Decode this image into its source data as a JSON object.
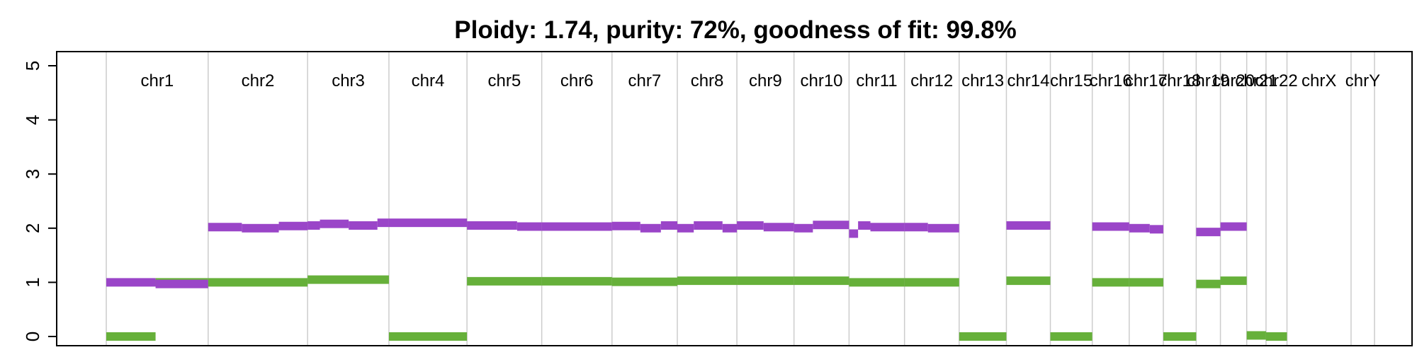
{
  "chart_data": {
    "type": "scatter",
    "title": "Ploidy: 1.74, purity: 72%, goodness of fit: 99.8%",
    "xlabel": "",
    "ylabel": "",
    "ylim": [
      0,
      5
    ],
    "y_ticks": [
      "0",
      "1",
      "2",
      "3",
      "4",
      "5"
    ],
    "grid": true,
    "legend": "none",
    "colors": {
      "major": "#9a45c8",
      "minor": "#66b03a",
      "grid": "#cccccc"
    },
    "x_unit": "Mb (cumulative genome position)",
    "chromosomes": [
      {
        "name": "chr1",
        "start": 0,
        "end": 248
      },
      {
        "name": "chr2",
        "start": 248,
        "end": 490
      },
      {
        "name": "chr3",
        "start": 490,
        "end": 688
      },
      {
        "name": "chr4",
        "start": 688,
        "end": 878
      },
      {
        "name": "chr5",
        "start": 878,
        "end": 1060
      },
      {
        "name": "chr6",
        "start": 1060,
        "end": 1231
      },
      {
        "name": "chr7",
        "start": 1231,
        "end": 1390
      },
      {
        "name": "chr8",
        "start": 1390,
        "end": 1535
      },
      {
        "name": "chr9",
        "start": 1535,
        "end": 1674
      },
      {
        "name": "chr10",
        "start": 1674,
        "end": 1808
      },
      {
        "name": "chr11",
        "start": 1808,
        "end": 1943
      },
      {
        "name": "chr12",
        "start": 1943,
        "end": 2076
      },
      {
        "name": "chr13",
        "start": 2076,
        "end": 2191
      },
      {
        "name": "chr14",
        "start": 2191,
        "end": 2298
      },
      {
        "name": "chr15",
        "start": 2298,
        "end": 2400
      },
      {
        "name": "chr16",
        "start": 2400,
        "end": 2490
      },
      {
        "name": "chr17",
        "start": 2490,
        "end": 2573
      },
      {
        "name": "chr18",
        "start": 2573,
        "end": 2653
      },
      {
        "name": "chr19",
        "start": 2653,
        "end": 2712
      },
      {
        "name": "chr20",
        "start": 2712,
        "end": 2776
      },
      {
        "name": "chr21",
        "start": 2776,
        "end": 2823
      },
      {
        "name": "chr22",
        "start": 2823,
        "end": 2874
      },
      {
        "name": "chrX",
        "start": 2874,
        "end": 3030
      },
      {
        "name": "chrY",
        "start": 3030,
        "end": 3087
      }
    ],
    "series": [
      {
        "name": "major",
        "segments": [
          [
            0,
            120,
            1.0
          ],
          [
            120,
            248,
            0.97
          ],
          [
            248,
            330,
            2.02
          ],
          [
            330,
            420,
            2.0
          ],
          [
            420,
            490,
            2.04
          ],
          [
            490,
            520,
            2.05
          ],
          [
            520,
            590,
            2.08
          ],
          [
            590,
            660,
            2.05
          ],
          [
            660,
            688,
            2.1
          ],
          [
            688,
            878,
            2.1
          ],
          [
            878,
            1000,
            2.05
          ],
          [
            1000,
            1060,
            2.03
          ],
          [
            1060,
            1231,
            2.03
          ],
          [
            1231,
            1300,
            2.04
          ],
          [
            1300,
            1350,
            2.0
          ],
          [
            1350,
            1390,
            2.05
          ],
          [
            1390,
            1430,
            2.0
          ],
          [
            1430,
            1500,
            2.05
          ],
          [
            1500,
            1535,
            2.0
          ],
          [
            1535,
            1600,
            2.05
          ],
          [
            1600,
            1674,
            2.02
          ],
          [
            1674,
            1720,
            2.0
          ],
          [
            1720,
            1808,
            2.06
          ],
          [
            1808,
            1830,
            1.9
          ],
          [
            1830,
            1860,
            2.05
          ],
          [
            1860,
            1943,
            2.02
          ],
          [
            1943,
            2000,
            2.02
          ],
          [
            2000,
            2076,
            2.0
          ],
          [
            2191,
            2298,
            2.05
          ],
          [
            2400,
            2490,
            2.03
          ],
          [
            2490,
            2540,
            2.0
          ],
          [
            2540,
            2573,
            1.98
          ],
          [
            2653,
            2712,
            1.93
          ],
          [
            2712,
            2776,
            2.03
          ]
        ]
      },
      {
        "name": "minor",
        "segments": [
          [
            0,
            120,
            0.0
          ],
          [
            120,
            248,
            1.0
          ],
          [
            248,
            490,
            1.0
          ],
          [
            490,
            688,
            1.05
          ],
          [
            688,
            878,
            0.0
          ],
          [
            878,
            1060,
            1.02
          ],
          [
            1060,
            1231,
            1.02
          ],
          [
            1231,
            1390,
            1.01
          ],
          [
            1390,
            1535,
            1.03
          ],
          [
            1535,
            1674,
            1.03
          ],
          [
            1674,
            1808,
            1.03
          ],
          [
            1808,
            1943,
            1.0
          ],
          [
            1943,
            2076,
            1.0
          ],
          [
            2076,
            2191,
            0.0
          ],
          [
            2191,
            2298,
            1.03
          ],
          [
            2298,
            2400,
            0.0
          ],
          [
            2400,
            2490,
            1.0
          ],
          [
            2490,
            2573,
            1.0
          ],
          [
            2573,
            2653,
            0.0
          ],
          [
            2653,
            2712,
            0.97
          ],
          [
            2712,
            2776,
            1.03
          ],
          [
            2776,
            2823,
            0.02
          ],
          [
            2823,
            2874,
            0.0
          ]
        ]
      }
    ]
  }
}
